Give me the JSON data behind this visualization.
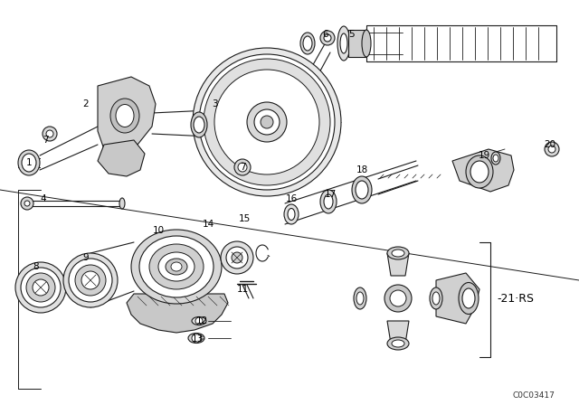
{
  "background_color": "#ffffff",
  "diagram_code": "C0C03417",
  "label_21rs": "-21·RS",
  "line_color": "#1a1a1a",
  "text_color": "#000000",
  "fig_width": 6.4,
  "fig_height": 4.48,
  "dpi": 100,
  "part_labels": [
    [
      50,
      155,
      "7"
    ],
    [
      32,
      180,
      "1"
    ],
    [
      95,
      115,
      "2"
    ],
    [
      237,
      115,
      "3"
    ],
    [
      48,
      220,
      "4"
    ],
    [
      388,
      38,
      "5"
    ],
    [
      360,
      38,
      "6"
    ],
    [
      268,
      185,
      "7"
    ],
    [
      40,
      295,
      "8"
    ],
    [
      95,
      285,
      "9"
    ],
    [
      175,
      255,
      "10"
    ],
    [
      268,
      320,
      "11"
    ],
    [
      223,
      355,
      "12"
    ],
    [
      218,
      375,
      "13"
    ],
    [
      230,
      248,
      "14"
    ],
    [
      270,
      242,
      "15"
    ],
    [
      322,
      220,
      "16"
    ],
    [
      365,
      215,
      "17"
    ],
    [
      400,
      188,
      "18"
    ],
    [
      535,
      172,
      "19"
    ],
    [
      608,
      160,
      "20"
    ]
  ]
}
